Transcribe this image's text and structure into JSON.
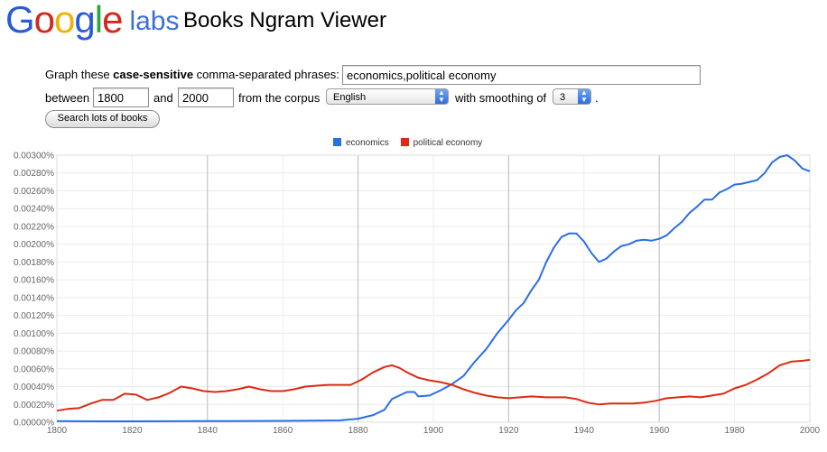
{
  "header": {
    "logo_text": "Google",
    "logo_suffix": "labs",
    "app_title": "Books Ngram Viewer"
  },
  "form": {
    "prefix": "Graph these ",
    "bold": "case-sensitive",
    "suffix": " comma-separated phrases:",
    "phrases_value": "economics,political economy",
    "between_label": "between",
    "start_year": "1800",
    "and_label": "and",
    "end_year": "2000",
    "corpus_label": "from the corpus",
    "corpus_value": "English",
    "smoothing_label": "with smoothing of",
    "smoothing_value": "3",
    "period": ".",
    "search_button": "Search lots of books"
  },
  "colors": {
    "economics": "#2a6ee6",
    "political_economy": "#dd2a12",
    "grid": "#cccccc",
    "axis_text": "#666666"
  },
  "chart_data": {
    "type": "line",
    "title": "",
    "xlabel": "",
    "ylabel": "",
    "xlim": [
      1800,
      2000
    ],
    "ylim": [
      0,
      0.003
    ],
    "grid": true,
    "legend_position": "top-center",
    "x_ticks": [
      "1800",
      "1820",
      "1840",
      "1860",
      "1880",
      "1900",
      "1920",
      "1940",
      "1960",
      "1980",
      "2000"
    ],
    "y_ticks": [
      "0.00000%",
      "0.00020%",
      "0.00040%",
      "0.00060%",
      "0.00080%",
      "0.00100%",
      "0.00120%",
      "0.00140%",
      "0.00160%",
      "0.00180%",
      "0.00200%",
      "0.00220%",
      "0.00240%",
      "0.00260%",
      "0.00280%",
      "0.00300%"
    ],
    "series": [
      {
        "name": "economics",
        "points": [
          [
            1800,
            1.2e-05
          ],
          [
            1810,
            1e-05
          ],
          [
            1820,
            1e-05
          ],
          [
            1840,
            1.2e-05
          ],
          [
            1860,
            1.5e-05
          ],
          [
            1875,
            2e-05
          ],
          [
            1880,
            4e-05
          ],
          [
            1884,
            8e-05
          ],
          [
            1887,
            0.00014
          ],
          [
            1889,
            0.00026
          ],
          [
            1891,
            0.0003
          ],
          [
            1893,
            0.00034
          ],
          [
            1895,
            0.00034
          ],
          [
            1896,
            0.00029
          ],
          [
            1899,
            0.0003
          ],
          [
            1902,
            0.00036
          ],
          [
            1905,
            0.00043
          ],
          [
            1908,
            0.00052
          ],
          [
            1911,
            0.00068
          ],
          [
            1914,
            0.00082
          ],
          [
            1917,
            0.001
          ],
          [
            1920,
            0.00115
          ],
          [
            1922,
            0.00126
          ],
          [
            1924,
            0.00134
          ],
          [
            1926,
            0.00148
          ],
          [
            1928,
            0.0016
          ],
          [
            1930,
            0.0018
          ],
          [
            1932,
            0.00196
          ],
          [
            1934,
            0.00208
          ],
          [
            1936,
            0.00212
          ],
          [
            1938,
            0.00212
          ],
          [
            1940,
            0.00203
          ],
          [
            1942,
            0.0019
          ],
          [
            1944,
            0.0018
          ],
          [
            1946,
            0.00184
          ],
          [
            1948,
            0.00192
          ],
          [
            1950,
            0.00198
          ],
          [
            1952,
            0.002
          ],
          [
            1954,
            0.00204
          ],
          [
            1956,
            0.00205
          ],
          [
            1958,
            0.00204
          ],
          [
            1960,
            0.00206
          ],
          [
            1962,
            0.0021
          ],
          [
            1964,
            0.00218
          ],
          [
            1966,
            0.00225
          ],
          [
            1968,
            0.00235
          ],
          [
            1970,
            0.00242
          ],
          [
            1972,
            0.0025
          ],
          [
            1974,
            0.0025
          ],
          [
            1976,
            0.00258
          ],
          [
            1978,
            0.00262
          ],
          [
            1980,
            0.00267
          ],
          [
            1982,
            0.00268
          ],
          [
            1984,
            0.0027
          ],
          [
            1986,
            0.00272
          ],
          [
            1988,
            0.0028
          ],
          [
            1990,
            0.00292
          ],
          [
            1992,
            0.00298
          ],
          [
            1994,
            0.003
          ],
          [
            1996,
            0.00294
          ],
          [
            1998,
            0.00285
          ],
          [
            2000,
            0.00282
          ]
        ]
      },
      {
        "name": "political economy",
        "points": [
          [
            1800,
            0.00013
          ],
          [
            1803,
            0.00015
          ],
          [
            1806,
            0.00016
          ],
          [
            1809,
            0.00021
          ],
          [
            1812,
            0.00025
          ],
          [
            1815,
            0.00025
          ],
          [
            1818,
            0.00032
          ],
          [
            1821,
            0.00031
          ],
          [
            1824,
            0.00025
          ],
          [
            1827,
            0.00028
          ],
          [
            1830,
            0.00033
          ],
          [
            1833,
            0.0004
          ],
          [
            1836,
            0.00038
          ],
          [
            1839,
            0.00035
          ],
          [
            1842,
            0.00034
          ],
          [
            1845,
            0.00035
          ],
          [
            1848,
            0.00037
          ],
          [
            1851,
            0.0004
          ],
          [
            1854,
            0.00037
          ],
          [
            1857,
            0.00035
          ],
          [
            1860,
            0.00035
          ],
          [
            1863,
            0.00037
          ],
          [
            1866,
            0.0004
          ],
          [
            1869,
            0.00041
          ],
          [
            1872,
            0.00042
          ],
          [
            1875,
            0.00042
          ],
          [
            1878,
            0.00042
          ],
          [
            1881,
            0.00048
          ],
          [
            1884,
            0.00056
          ],
          [
            1887,
            0.00062
          ],
          [
            1889,
            0.00064
          ],
          [
            1891,
            0.00061
          ],
          [
            1893,
            0.00056
          ],
          [
            1896,
            0.0005
          ],
          [
            1899,
            0.00047
          ],
          [
            1902,
            0.00045
          ],
          [
            1905,
            0.00042
          ],
          [
            1908,
            0.00037
          ],
          [
            1911,
            0.00033
          ],
          [
            1914,
            0.0003
          ],
          [
            1917,
            0.00028
          ],
          [
            1920,
            0.00027
          ],
          [
            1923,
            0.00028
          ],
          [
            1926,
            0.00029
          ],
          [
            1930,
            0.00028
          ],
          [
            1935,
            0.00028
          ],
          [
            1938,
            0.00026
          ],
          [
            1941,
            0.00022
          ],
          [
            1944,
            0.0002
          ],
          [
            1947,
            0.00021
          ],
          [
            1950,
            0.00021
          ],
          [
            1953,
            0.00021
          ],
          [
            1956,
            0.00022
          ],
          [
            1959,
            0.00024
          ],
          [
            1962,
            0.00027
          ],
          [
            1965,
            0.00028
          ],
          [
            1968,
            0.00029
          ],
          [
            1971,
            0.00028
          ],
          [
            1974,
            0.0003
          ],
          [
            1977,
            0.00032
          ],
          [
            1980,
            0.00038
          ],
          [
            1983,
            0.00042
          ],
          [
            1986,
            0.00048
          ],
          [
            1989,
            0.00055
          ],
          [
            1992,
            0.00064
          ],
          [
            1995,
            0.00068
          ],
          [
            1998,
            0.00069
          ],
          [
            2000,
            0.0007
          ]
        ]
      }
    ]
  }
}
